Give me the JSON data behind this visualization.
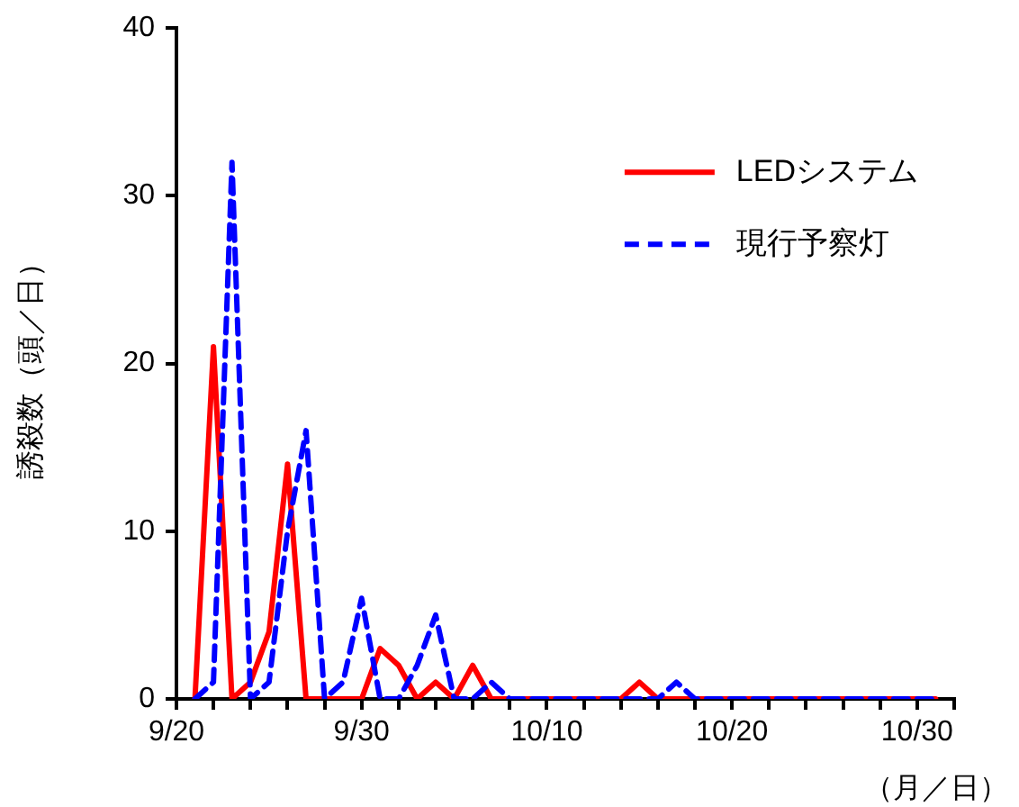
{
  "chart_data": {
    "type": "line",
    "ylabel": "誘殺数（頭／日）",
    "xlabel": "（月／日）",
    "x": [
      "--09-21",
      "--09-22",
      "--09-23",
      "--09-24",
      "--09-25",
      "--09-26",
      "--09-27",
      "--09-28",
      "--09-29",
      "--09-30",
      "--10-01",
      "--10-02",
      "--10-03",
      "--10-04",
      "--10-05",
      "--10-06",
      "--10-07",
      "--10-08",
      "--10-09",
      "--10-10",
      "--10-11",
      "--10-12",
      "--10-13",
      "--10-14",
      "--10-15",
      "--10-16",
      "--10-17",
      "--10-18",
      "--10-19",
      "--10-20",
      "--10-21",
      "--10-22",
      "--10-23",
      "--10-24",
      "--10-25",
      "--10-26",
      "--10-27",
      "--10-28",
      "--10-29",
      "--10-30",
      "--10-31"
    ],
    "series": [
      {
        "name": "LEDシステム",
        "color": "#ff0000",
        "line_style": "solid",
        "values": [
          0,
          21,
          0,
          1,
          4,
          14,
          0,
          0,
          0,
          0,
          3,
          2,
          0,
          1,
          0,
          2,
          0,
          0,
          0,
          0,
          0,
          0,
          0,
          0,
          1,
          0,
          0,
          0,
          0,
          0,
          0,
          0,
          0,
          0,
          0,
          0,
          0,
          0,
          0,
          0,
          0
        ]
      },
      {
        "name": "現行予察灯",
        "color": "#0000ff",
        "line_style": "dashed",
        "values": [
          0,
          1,
          32,
          0,
          1,
          10,
          16,
          0,
          1,
          6,
          0,
          0,
          2,
          5,
          0,
          0,
          1,
          0,
          0,
          0,
          0,
          0,
          0,
          0,
          0,
          0,
          1,
          0,
          0,
          0,
          0,
          0,
          0,
          0,
          0,
          0,
          0,
          0,
          0,
          0,
          0
        ]
      }
    ],
    "xlim": [
      "--09-20",
      "--11-01"
    ],
    "xticks": [
      {
        "value": "--09-20",
        "label": "9/20"
      },
      {
        "value": "--09-22",
        "label": null
      },
      {
        "value": "--09-24",
        "label": null
      },
      {
        "value": "--09-26",
        "label": null
      },
      {
        "value": "--09-28",
        "label": null
      },
      {
        "value": "--09-30",
        "label": "9/30"
      },
      {
        "value": "--10-02",
        "label": null
      },
      {
        "value": "--10-04",
        "label": null
      },
      {
        "value": "--10-06",
        "label": null
      },
      {
        "value": "--10-08",
        "label": null
      },
      {
        "value": "--10-10",
        "label": "10/10"
      },
      {
        "value": "--10-12",
        "label": null
      },
      {
        "value": "--10-14",
        "label": null
      },
      {
        "value": "--10-16",
        "label": null
      },
      {
        "value": "--10-18",
        "label": null
      },
      {
        "value": "--10-20",
        "label": "10/20"
      },
      {
        "value": "--10-22",
        "label": null
      },
      {
        "value": "--10-24",
        "label": null
      },
      {
        "value": "--10-26",
        "label": null
      },
      {
        "value": "--10-28",
        "label": null
      },
      {
        "value": "--10-30",
        "label": "10/30"
      },
      {
        "value": "--11-01",
        "label": null
      }
    ],
    "ylim": [
      0,
      40
    ],
    "yticks": [
      0,
      10,
      20,
      30,
      40
    ],
    "grid": false,
    "legend": "top right",
    "marker": "none"
  }
}
